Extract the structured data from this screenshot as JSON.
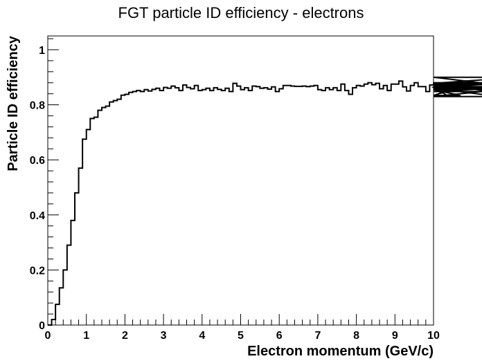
{
  "chart_data": {
    "type": "line",
    "style": "step-histogram",
    "title": "FGT particle ID efficiency - electrons",
    "xlabel": "Electron momentum (GeV/c)",
    "ylabel": "Particle ID efficiency",
    "xlim": [
      0,
      10
    ],
    "ylim": [
      0,
      1.05
    ],
    "x_ticks": [
      0,
      1,
      2,
      3,
      4,
      5,
      6,
      7,
      8,
      9,
      10
    ],
    "y_ticks": [
      0,
      0.2,
      0.4,
      0.6,
      0.8,
      1
    ],
    "x_tick_labels": [
      "0",
      "1",
      "2",
      "3",
      "4",
      "5",
      "6",
      "7",
      "8",
      "9",
      "10"
    ],
    "y_tick_labels": [
      "0",
      "0.2",
      "0.4",
      "0.6",
      "0.8",
      "1"
    ],
    "grid": false,
    "bin_width": 0.1,
    "x_start": 0,
    "series": [
      {
        "values": [
          0.0,
          0.02,
          0.075,
          0.135,
          0.2,
          0.29,
          0.38,
          0.48,
          0.57,
          0.675,
          0.71,
          0.75,
          0.755,
          0.78,
          0.79,
          0.795,
          0.81,
          0.815,
          0.82,
          0.835,
          0.838,
          0.845,
          0.848,
          0.852,
          0.848,
          0.855,
          0.85,
          0.856,
          0.86,
          0.852,
          0.863,
          0.86,
          0.868,
          0.862,
          0.852,
          0.872,
          0.863,
          0.858,
          0.87,
          0.852,
          0.855,
          0.86,
          0.852,
          0.862,
          0.856,
          0.852,
          0.86,
          0.848,
          0.878,
          0.868,
          0.855,
          0.862,
          0.852,
          0.868,
          0.866,
          0.86,
          0.862,
          0.857,
          0.865,
          0.848,
          0.858,
          0.87,
          0.87,
          0.868,
          0.867,
          0.867,
          0.868,
          0.866,
          0.868,
          0.87,
          0.855,
          0.852,
          0.862,
          0.855,
          0.862,
          0.852,
          0.875,
          0.852,
          0.838,
          0.862,
          0.87,
          0.868,
          0.875,
          0.88,
          0.873,
          0.878,
          0.858,
          0.87,
          0.852,
          0.875,
          0.875,
          0.886,
          0.865,
          0.85,
          0.87,
          0.88,
          0.866,
          0.866,
          0.848,
          0.872,
          0.875,
          0.862,
          0.871,
          0.863,
          0.83,
          0.868,
          0.855,
          0.834,
          0.868,
          0.867,
          0.857,
          0.864,
          0.873,
          0.88,
          0.876,
          0.848,
          0.86,
          0.83,
          0.856,
          0.862,
          0.866,
          0.878,
          0.9,
          0.862
        ]
      }
    ]
  }
}
